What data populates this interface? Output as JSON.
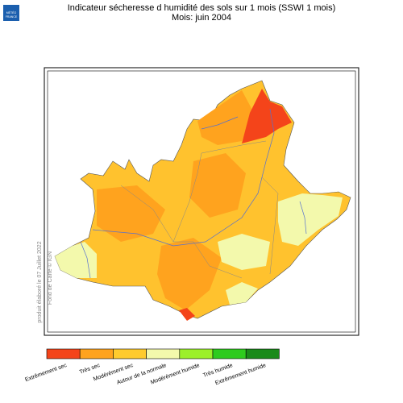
{
  "header": {
    "title": "Indicateur sécheresse d humidité des sols sur 1 mois (SSWI 1 mois)",
    "subtitle": "Mois: juin 2004"
  },
  "logo": {
    "lines": [
      "MÉTÉO",
      "FRANCE"
    ]
  },
  "credits": {
    "produced": "produit élaboré le 07 Juillet 2022",
    "basemap": "Fond de Carte © IGN"
  },
  "legend": {
    "items": [
      {
        "label": "Extrêmement sec",
        "color": "#f4441a"
      },
      {
        "label": "Très sec",
        "color": "#ffa31e"
      },
      {
        "label": "Modérément sec",
        "color": "#ffcb2e"
      },
      {
        "label": "Autour de la normale",
        "color": "#f3f9ac"
      },
      {
        "label": "Modérément humide",
        "color": "#9cf02a"
      },
      {
        "label": "Très humide",
        "color": "#2ecb1e"
      },
      {
        "label": "Extrêmement humide",
        "color": "#1a8a1a"
      }
    ]
  }
}
